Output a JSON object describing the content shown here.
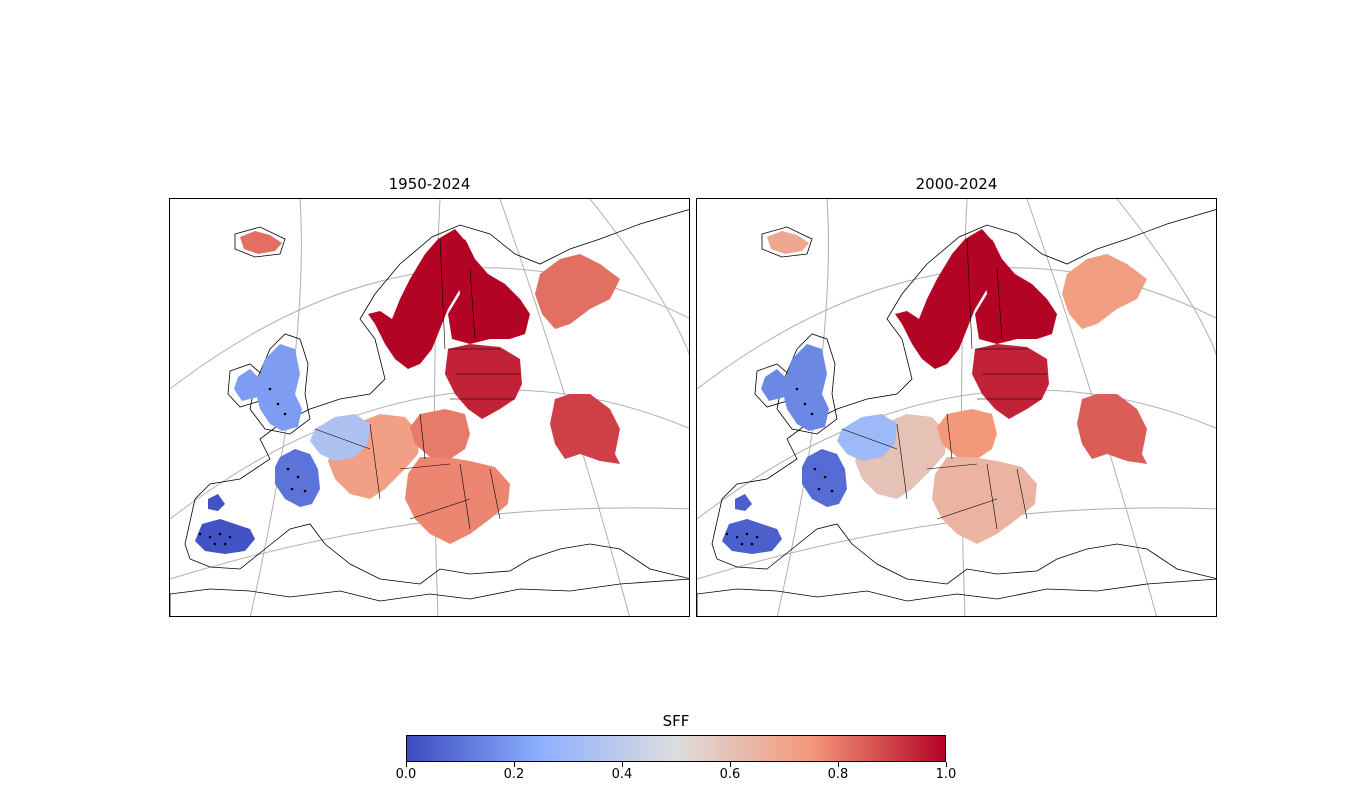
{
  "panels": [
    {
      "title": "1950-2024"
    },
    {
      "title": "2000-2024"
    }
  ],
  "colorbar": {
    "label": "SFF",
    "ticks": [
      "0.0",
      "0.2",
      "0.4",
      "0.6",
      "0.8",
      "1.0"
    ],
    "cmap": "coolwarm",
    "colors": [
      "#3b4cc0",
      "#8db0fe",
      "#dddddd",
      "#f4987a",
      "#b40426"
    ]
  },
  "regions": [
    {
      "name": "Scandinavia",
      "sff": [
        1.0,
        1.0
      ]
    },
    {
      "name": "Finland",
      "sff": [
        1.0,
        1.0
      ]
    },
    {
      "name": "Baltics",
      "sff": [
        0.95,
        0.95
      ]
    },
    {
      "name": "Northern Russia",
      "sff": [
        0.82,
        0.73
      ]
    },
    {
      "name": "Southern Russia",
      "sff": [
        0.9,
        0.85
      ]
    },
    {
      "name": "Central Europe",
      "sff": [
        0.72,
        0.6
      ]
    },
    {
      "name": "Poland",
      "sff": [
        0.8,
        0.75
      ]
    },
    {
      "name": "Benelux",
      "sff": [
        0.35,
        0.3
      ]
    },
    {
      "name": "British Isles",
      "sff": [
        0.2,
        0.15
      ]
    },
    {
      "name": "France",
      "sff": [
        0.1,
        0.08
      ]
    },
    {
      "name": "Spain",
      "sff": [
        0.02,
        0.05
      ]
    },
    {
      "name": "Iceland",
      "sff": [
        0.82,
        0.7
      ]
    },
    {
      "name": "Carpathian Basin",
      "sff": [
        0.78,
        0.65
      ]
    }
  ]
}
